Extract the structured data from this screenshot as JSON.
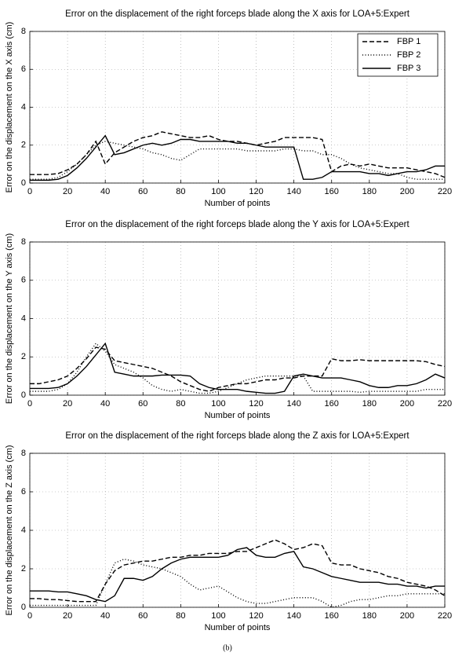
{
  "chart_data": [
    {
      "type": "line",
      "title": "Error on the displacement of the right forceps blade along the X axis for LOA+5:Expert",
      "xlabel": "Number of points",
      "ylabel": "Error on the displacement on the X axis (cm)",
      "x": [
        0,
        5,
        10,
        15,
        20,
        25,
        30,
        35,
        40,
        45,
        50,
        55,
        60,
        65,
        70,
        75,
        80,
        85,
        90,
        95,
        100,
        105,
        110,
        115,
        120,
        125,
        130,
        135,
        140,
        145,
        150,
        155,
        160,
        165,
        170,
        175,
        180,
        185,
        190,
        195,
        200,
        205,
        210,
        215,
        220
      ],
      "series": [
        {
          "name": "FBP 1",
          "color": "#000000",
          "dash": "dashed",
          "values": [
            0.45,
            0.45,
            0.45,
            0.5,
            0.7,
            1.0,
            1.5,
            2.2,
            1.0,
            1.6,
            1.9,
            2.2,
            2.4,
            2.5,
            2.7,
            2.6,
            2.5,
            2.4,
            2.4,
            2.5,
            2.3,
            2.2,
            2.2,
            2.1,
            2.0,
            2.1,
            2.2,
            2.4,
            2.4,
            2.4,
            2.4,
            2.3,
            0.6,
            0.9,
            1.0,
            0.9,
            1.0,
            0.9,
            0.8,
            0.8,
            0.8,
            0.7,
            0.6,
            0.5,
            0.3
          ]
        },
        {
          "name": "FBP 2",
          "color": "#000000",
          "dash": "dotted",
          "values": [
            0.2,
            0.2,
            0.2,
            0.3,
            0.6,
            1.0,
            1.5,
            2.0,
            2.2,
            2.1,
            2.0,
            1.9,
            1.8,
            1.6,
            1.5,
            1.3,
            1.2,
            1.5,
            1.8,
            1.8,
            1.8,
            1.8,
            1.8,
            1.7,
            1.7,
            1.7,
            1.7,
            1.8,
            1.8,
            1.7,
            1.7,
            1.5,
            1.5,
            1.3,
            1.0,
            0.8,
            0.7,
            0.6,
            0.5,
            0.5,
            0.3,
            0.2,
            0.2,
            0.2,
            0.2
          ]
        },
        {
          "name": "FBP 3",
          "color": "#000000",
          "dash": "solid",
          "values": [
            0.15,
            0.15,
            0.15,
            0.2,
            0.4,
            0.8,
            1.3,
            1.9,
            2.5,
            1.5,
            1.6,
            1.8,
            2.0,
            2.1,
            2.0,
            2.1,
            2.3,
            2.3,
            2.2,
            2.2,
            2.2,
            2.2,
            2.1,
            2.1,
            2.0,
            1.9,
            1.9,
            1.9,
            1.9,
            0.2,
            0.2,
            0.3,
            0.6,
            0.6,
            0.6,
            0.6,
            0.5,
            0.5,
            0.4,
            0.5,
            0.6,
            0.6,
            0.7,
            0.9,
            0.9
          ]
        }
      ],
      "xlim": [
        0,
        220
      ],
      "ylim": [
        0,
        8
      ],
      "xticks": [
        0,
        20,
        40,
        60,
        80,
        100,
        120,
        140,
        160,
        180,
        200,
        220
      ],
      "yticks": [
        0,
        2,
        4,
        6,
        8
      ],
      "grid": true,
      "legend": "upper right"
    },
    {
      "type": "line",
      "title": "Error on the displacement of the right forceps blade along the Y axis for LOA+5:Expert",
      "xlabel": "Number of points",
      "ylabel": "Error on the displacement on the Y axis (cm)",
      "x": [
        0,
        5,
        10,
        15,
        20,
        25,
        30,
        35,
        40,
        45,
        50,
        55,
        60,
        65,
        70,
        75,
        80,
        85,
        90,
        95,
        100,
        105,
        110,
        115,
        120,
        125,
        130,
        135,
        140,
        145,
        150,
        155,
        160,
        165,
        170,
        175,
        180,
        185,
        190,
        195,
        200,
        205,
        210,
        215,
        220
      ],
      "series": [
        {
          "name": "FBP 1",
          "color": "#000000",
          "dash": "dashed",
          "values": [
            0.6,
            0.6,
            0.7,
            0.8,
            1.0,
            1.4,
            1.9,
            2.5,
            2.4,
            1.8,
            1.7,
            1.6,
            1.5,
            1.4,
            1.2,
            1.0,
            0.7,
            0.5,
            0.3,
            0.2,
            0.4,
            0.5,
            0.6,
            0.6,
            0.7,
            0.8,
            0.8,
            0.9,
            0.9,
            1.0,
            1.0,
            1.0,
            1.9,
            1.8,
            1.8,
            1.85,
            1.8,
            1.8,
            1.8,
            1.8,
            1.8,
            1.8,
            1.75,
            1.6,
            1.5
          ]
        },
        {
          "name": "FBP 2",
          "color": "#000000",
          "dash": "dotted",
          "values": [
            0.2,
            0.2,
            0.2,
            0.3,
            0.6,
            1.2,
            2.0,
            2.7,
            2.3,
            1.6,
            1.4,
            1.2,
            0.9,
            0.5,
            0.3,
            0.2,
            0.3,
            0.2,
            0.1,
            0.1,
            0.2,
            0.4,
            0.6,
            0.8,
            0.9,
            1.0,
            1.0,
            1.0,
            1.0,
            1.0,
            0.2,
            0.2,
            0.2,
            0.2,
            0.2,
            0.15,
            0.2,
            0.2,
            0.2,
            0.2,
            0.2,
            0.2,
            0.3,
            0.3,
            0.3
          ]
        },
        {
          "name": "FBP 3",
          "color": "#000000",
          "dash": "solid",
          "values": [
            0.35,
            0.35,
            0.35,
            0.4,
            0.6,
            1.0,
            1.5,
            2.1,
            2.7,
            1.2,
            1.1,
            1.0,
            1.0,
            1.0,
            1.05,
            1.05,
            1.05,
            1.0,
            0.6,
            0.4,
            0.3,
            0.3,
            0.3,
            0.2,
            0.15,
            0.1,
            0.1,
            0.2,
            1.0,
            1.1,
            1.0,
            0.9,
            0.9,
            0.9,
            0.8,
            0.7,
            0.5,
            0.4,
            0.4,
            0.5,
            0.5,
            0.6,
            0.8,
            1.1,
            0.9
          ]
        }
      ],
      "xlim": [
        0,
        220
      ],
      "ylim": [
        0,
        8
      ],
      "xticks": [
        0,
        20,
        40,
        60,
        80,
        100,
        120,
        140,
        160,
        180,
        200,
        220
      ],
      "yticks": [
        0,
        2,
        4,
        6,
        8
      ],
      "grid": true
    },
    {
      "type": "line",
      "title": "Error on the displacement of the right forceps blade along the Z axis for LOA+5:Expert",
      "xlabel": "Number of points",
      "ylabel": "Error on the displacement on the Z axis (cm)",
      "x": [
        0,
        5,
        10,
        15,
        20,
        25,
        30,
        35,
        40,
        45,
        50,
        55,
        60,
        65,
        70,
        75,
        80,
        85,
        90,
        95,
        100,
        105,
        110,
        115,
        120,
        125,
        130,
        135,
        140,
        145,
        150,
        155,
        160,
        165,
        170,
        175,
        180,
        185,
        190,
        195,
        200,
        205,
        210,
        215,
        220
      ],
      "series": [
        {
          "name": "FBP 1",
          "color": "#000000",
          "dash": "dashed",
          "values": [
            0.45,
            0.45,
            0.4,
            0.4,
            0.35,
            0.3,
            0.3,
            0.3,
            1.2,
            1.9,
            2.2,
            2.3,
            2.4,
            2.4,
            2.5,
            2.6,
            2.6,
            2.7,
            2.7,
            2.8,
            2.8,
            2.8,
            2.9,
            2.9,
            3.1,
            3.3,
            3.5,
            3.3,
            3.0,
            3.1,
            3.3,
            3.2,
            2.3,
            2.2,
            2.2,
            2.0,
            1.9,
            1.8,
            1.6,
            1.5,
            1.3,
            1.2,
            1.1,
            0.9,
            0.6
          ]
        },
        {
          "name": "FBP 2",
          "color": "#000000",
          "dash": "dotted",
          "values": [
            0.1,
            0.1,
            0.1,
            0.1,
            0.1,
            0.1,
            0.1,
            0.1,
            1.2,
            2.3,
            2.5,
            2.4,
            2.2,
            2.1,
            2.0,
            1.8,
            1.6,
            1.2,
            0.9,
            1.0,
            1.1,
            0.8,
            0.5,
            0.3,
            0.2,
            0.2,
            0.3,
            0.4,
            0.5,
            0.5,
            0.5,
            0.3,
            0.0,
            0.1,
            0.3,
            0.4,
            0.4,
            0.5,
            0.6,
            0.6,
            0.7,
            0.7,
            0.7,
            0.7,
            0.7
          ]
        },
        {
          "name": "FBP 3",
          "color": "#000000",
          "dash": "solid",
          "values": [
            0.85,
            0.85,
            0.85,
            0.8,
            0.8,
            0.7,
            0.6,
            0.4,
            0.3,
            0.6,
            1.5,
            1.5,
            1.4,
            1.6,
            2.0,
            2.3,
            2.5,
            2.6,
            2.6,
            2.6,
            2.6,
            2.7,
            3.0,
            3.1,
            2.7,
            2.6,
            2.6,
            2.8,
            2.9,
            2.1,
            2.0,
            1.8,
            1.6,
            1.5,
            1.4,
            1.3,
            1.3,
            1.3,
            1.2,
            1.2,
            1.1,
            1.1,
            1.0,
            1.1,
            1.1
          ]
        }
      ],
      "xlim": [
        0,
        220
      ],
      "ylim": [
        0,
        8
      ],
      "xticks": [
        0,
        20,
        40,
        60,
        80,
        100,
        120,
        140,
        160,
        180,
        200,
        220
      ],
      "yticks": [
        0,
        2,
        4,
        6,
        8
      ],
      "grid": true
    }
  ],
  "caption": "(b)"
}
